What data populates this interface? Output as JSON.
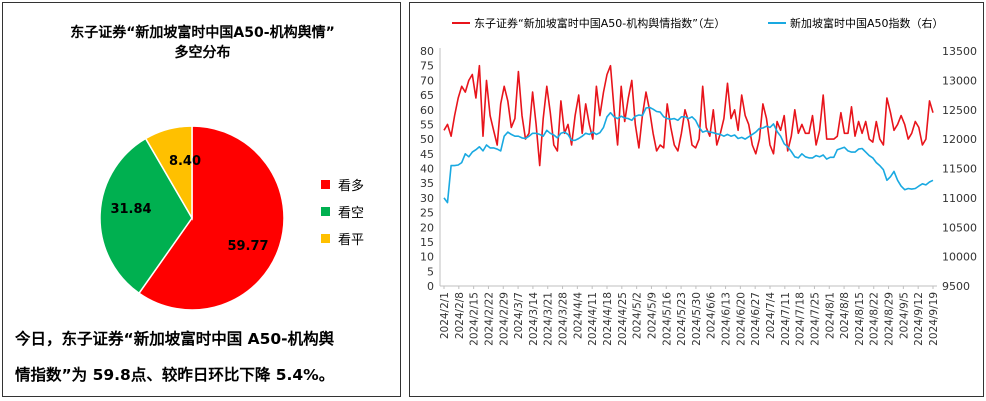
{
  "left": {
    "title_line1": "东子证券“新加坡富时中国A50-机构舆情”",
    "title_line2": "多空分布",
    "summary_line1": "今日，东子证券“新加坡富时中国 A50-机构舆",
    "summary_line2": "情指数”为 59.8点、较昨日环比下降 5.4%。"
  },
  "right": {
    "legend_red": "东子证券“新加坡富时中国A50-机构舆情指数”（左）",
    "legend_blue": "新加坡富时中国A50指数（右）"
  },
  "colors": {
    "bull": "#ff0000",
    "bear": "#00b050",
    "neutral": "#ffc000",
    "sentiment_line": "#e8141b",
    "index_line": "#19a9e1"
  },
  "chart_data": [
    {
      "type": "pie",
      "title": "东子证券“新加坡富时中国A50-机构舆情”多空分布",
      "slices": [
        {
          "label": "看多",
          "value": 59.77,
          "display": "59.77",
          "color": "#ff0000"
        },
        {
          "label": "看空",
          "value": 31.84,
          "display": "31.84",
          "color": "#00b050"
        },
        {
          "label": "看平",
          "value": 8.4,
          "display": "8.40",
          "color": "#ffc000"
        }
      ]
    },
    {
      "type": "line",
      "title": "",
      "x_start": "2024-02-01",
      "x_end": "2024-09-23",
      "x_tick_labels": [
        "2024/2/1",
        "2024/2/8",
        "2024/2/15",
        "2024/2/22",
        "2024/2/29",
        "2024/3/7",
        "2024/3/14",
        "2024/3/21",
        "2024/3/28",
        "2024/4/4",
        "2024/4/11",
        "2024/4/18",
        "2024/4/25",
        "2024/5/2",
        "2024/5/9",
        "2024/5/16",
        "2024/5/23",
        "2024/5/30",
        "2024/6/6",
        "2024/6/13",
        "2024/6/20",
        "2024/6/27",
        "2024/7/4",
        "2024/7/11",
        "2024/7/18",
        "2024/7/25",
        "2024/8/1",
        "2024/8/8",
        "2024/8/15",
        "2024/8/22",
        "2024/8/29",
        "2024/9/5",
        "2024/9/12",
        "2024/9/19"
      ],
      "y_left": {
        "min": 0,
        "max": 80,
        "step": 5,
        "ticks": [
          "0",
          "5",
          "10",
          "15",
          "20",
          "25",
          "30",
          "35",
          "40",
          "45",
          "50",
          "55",
          "60",
          "65",
          "70",
          "75",
          "80"
        ]
      },
      "y_right": {
        "min": 9500,
        "max": 13500,
        "step": 500,
        "ticks": [
          "9500",
          "10000",
          "10500",
          "11000",
          "11500",
          "12000",
          "12500",
          "13000",
          "13500"
        ]
      },
      "series": [
        {
          "name": "东子证券“新加坡富时中国A50-机构舆情指数”（左）",
          "axis": "left",
          "values": [
            53,
            55,
            51,
            58,
            64,
            68,
            66,
            70,
            72,
            64,
            75,
            51,
            70,
            58,
            53,
            48,
            62,
            68,
            63,
            54,
            57,
            73,
            58,
            50,
            52,
            66,
            55,
            41,
            57,
            68,
            59,
            48,
            46,
            63,
            52,
            55,
            48,
            58,
            65,
            52,
            62,
            55,
            50,
            68,
            58,
            66,
            72,
            75,
            60,
            48,
            68,
            56,
            64,
            70,
            55,
            47,
            58,
            66,
            60,
            52,
            46,
            48,
            47,
            62,
            54,
            48,
            46,
            52,
            60,
            56,
            48,
            47,
            50,
            68,
            54,
            51,
            60,
            48,
            52,
            57,
            69,
            57,
            60,
            53,
            65,
            58,
            55,
            48,
            45,
            50,
            62,
            57,
            48,
            45,
            56,
            53,
            58,
            46,
            51,
            60,
            52,
            55,
            52,
            52,
            58,
            48,
            53,
            65,
            50,
            50,
            50,
            51,
            59,
            52,
            52,
            61,
            51,
            56,
            52,
            56,
            50,
            49,
            56,
            50,
            48,
            64,
            59,
            53,
            55,
            58,
            55,
            50,
            52,
            56,
            54,
            48,
            50,
            63,
            59
          ],
          "color": "#e8141b"
        },
        {
          "name": "新加坡富时中国A50指数（右）",
          "axis": "right",
          "values": [
            11000,
            10920,
            11550,
            11550,
            11560,
            11600,
            11750,
            11700,
            11780,
            11820,
            11870,
            11800,
            11900,
            11850,
            11850,
            11830,
            11800,
            12050,
            12120,
            12080,
            12050,
            12050,
            12020,
            12010,
            12050,
            12100,
            12100,
            12080,
            12050,
            12150,
            12100,
            12070,
            12020,
            12100,
            12120,
            12080,
            11980,
            11980,
            12010,
            12050,
            12100,
            12080,
            12120,
            12080,
            12110,
            12200,
            12380,
            12450,
            12380,
            12350,
            12390,
            12360,
            12350,
            12320,
            12390,
            12410,
            12400,
            12530,
            12540,
            12510,
            12470,
            12460,
            12380,
            12350,
            12340,
            12350,
            12320,
            12380,
            12380,
            12350,
            12380,
            12320,
            12200,
            12120,
            12140,
            12120,
            12110,
            12090,
            12080,
            12050,
            12080,
            12050,
            12070,
            12010,
            12030,
            12000,
            12040,
            12080,
            12120,
            12180,
            12190,
            12220,
            12200,
            12260,
            12130,
            12050,
            11920,
            11870,
            11790,
            11700,
            11680,
            11750,
            11700,
            11680,
            11680,
            11720,
            11700,
            11730,
            11660,
            11690,
            11690,
            11820,
            11840,
            11860,
            11800,
            11780,
            11780,
            11830,
            11840,
            11780,
            11720,
            11680,
            11600,
            11550,
            11480,
            11300,
            11360,
            11450,
            11300,
            11200,
            11140,
            11160,
            11150,
            11160,
            11200,
            11240,
            11220,
            11270,
            11300
          ],
          "color": "#19a9e1"
        }
      ],
      "legend_position": "top",
      "grid": false
    }
  ]
}
